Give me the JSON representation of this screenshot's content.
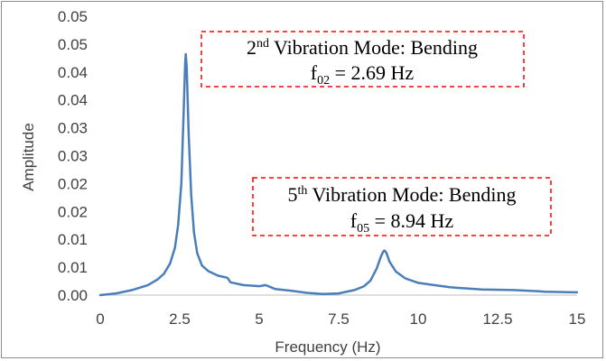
{
  "chart_data": {
    "type": "line",
    "xlabel": "Frequency (Hz)",
    "ylabel": "Amplitude",
    "xlim": [
      0,
      15
    ],
    "ylim": [
      0,
      0.05
    ],
    "x_ticks": [
      "0",
      "2.5",
      "5",
      "7.5",
      "10",
      "12.5",
      "15"
    ],
    "y_ticks": [
      "0.00",
      "0.01",
      "0.01",
      "0.02",
      "0.02",
      "0.03",
      "0.03",
      "0.04",
      "0.04",
      "0.05",
      "0.05"
    ],
    "grid": false,
    "series": [
      {
        "color": "#4a7ebb",
        "x": [
          0,
          0.5,
          1.0,
          1.5,
          1.8,
          2.0,
          2.2,
          2.35,
          2.45,
          2.55,
          2.62,
          2.67,
          2.69,
          2.72,
          2.78,
          2.86,
          2.95,
          3.05,
          3.2,
          3.4,
          3.7,
          4.0,
          4.1,
          4.5,
          5.0,
          5.2,
          5.5,
          6.0,
          6.5,
          7.0,
          7.5,
          8.0,
          8.3,
          8.5,
          8.7,
          8.82,
          8.9,
          8.94,
          9.0,
          9.1,
          9.3,
          9.6,
          10.0,
          10.5,
          11.0,
          12.0,
          13.0,
          13.8,
          14.0,
          15.0
        ],
        "y": [
          0.0,
          0.0003,
          0.0009,
          0.0018,
          0.0028,
          0.0038,
          0.0057,
          0.0085,
          0.0125,
          0.02,
          0.032,
          0.0415,
          0.0432,
          0.041,
          0.029,
          0.018,
          0.0112,
          0.0075,
          0.0053,
          0.0043,
          0.0035,
          0.0031,
          0.0023,
          0.0018,
          0.0016,
          0.0018,
          0.0011,
          0.0008,
          0.0004,
          0.0002,
          0.0003,
          0.0009,
          0.0016,
          0.0026,
          0.0048,
          0.0068,
          0.0078,
          0.008,
          0.0076,
          0.006,
          0.0042,
          0.003,
          0.0022,
          0.0018,
          0.0014,
          0.001,
          0.0009,
          0.0007,
          0.0006,
          0.0005
        ]
      }
    ],
    "annotations": [
      {
        "line1_base": "2",
        "line1_sup": "nd",
        "line1_rest": " Vibration Mode: Bending",
        "line2_base": "f",
        "line2_sub": "02",
        "line2_rest": " = 2.69 Hz",
        "border_color": "#ff0000"
      },
      {
        "line1_base": "5",
        "line1_sup": "th",
        "line1_rest": " Vibration Mode: Bending",
        "line2_base": "f",
        "line2_sub": "05",
        "line2_rest": " = 8.94 Hz",
        "border_color": "#ff0000"
      }
    ]
  }
}
